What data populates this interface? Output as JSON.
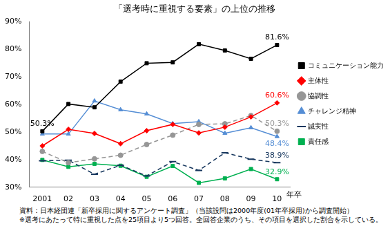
{
  "chart_data": {
    "type": "line",
    "title": "「選考時に重視する要素」の上位の推移",
    "x_label": "年卒",
    "categories": [
      "2001",
      "02",
      "03",
      "04",
      "05",
      "06",
      "07",
      "08",
      "09",
      "10"
    ],
    "ylim": [
      30,
      90
    ],
    "yticks": [
      {
        "value": 30,
        "label": "30%"
      },
      {
        "value": 40,
        "label": "40%"
      },
      {
        "value": 50,
        "label": "50%"
      },
      {
        "value": 60,
        "label": "60%"
      },
      {
        "value": 70,
        "label": "70%"
      },
      {
        "value": 80,
        "label": "80%"
      },
      {
        "value": 90,
        "label": "90%"
      }
    ],
    "grid": false,
    "legend": "right",
    "data_labels": true,
    "series": [
      {
        "name": "コミュニケーション能力",
        "color": "#000000",
        "marker": "square",
        "line_style": "solid",
        "values": [
          50.3,
          60.2,
          59.0,
          68.3,
          75.0,
          75.3,
          81.9,
          79.6,
          76.6,
          81.6
        ],
        "value_labels": [
          "50.3%",
          null,
          null,
          null,
          null,
          null,
          null,
          null,
          null,
          "81.6%"
        ]
      },
      {
        "name": "主体性",
        "color": "#ff0000",
        "marker": "diamond",
        "line_style": "solid",
        "values": [
          45.0,
          51.0,
          49.5,
          45.8,
          50.5,
          52.8,
          49.7,
          51.8,
          55.5,
          60.6
        ],
        "value_labels": [
          null,
          null,
          null,
          null,
          null,
          null,
          null,
          null,
          null,
          "60.6%"
        ]
      },
      {
        "name": "協調性",
        "color": "#969696",
        "marker": "circle",
        "line_style": "dashed",
        "values": [
          43.0,
          38.9,
          40.3,
          41.6,
          45.5,
          48.9,
          52.8,
          53.0,
          56.0,
          50.3
        ],
        "value_labels": [
          null,
          null,
          null,
          null,
          null,
          null,
          null,
          null,
          null,
          "50.3%"
        ]
      },
      {
        "name": "チャレンジ精神",
        "color": "#558ed5",
        "marker": "triangle",
        "line_style": "solid",
        "values": [
          49.3,
          49.3,
          61.3,
          58.1,
          56.6,
          53.1,
          53.8,
          49.6,
          51.6,
          48.4
        ],
        "value_labels": [
          null,
          null,
          null,
          null,
          null,
          null,
          null,
          null,
          null,
          "48.4%"
        ]
      },
      {
        "name": "誠実性",
        "color": "#17375e",
        "marker": "dash",
        "line_style": "dashed",
        "values": [
          39.6,
          39.8,
          34.7,
          38.0,
          34.1,
          39.3,
          36.1,
          42.5,
          40.2,
          38.9
        ],
        "value_labels": [
          null,
          null,
          null,
          null,
          null,
          null,
          null,
          null,
          null,
          "38.9%"
        ]
      },
      {
        "name": "責任感",
        "color": "#00b050",
        "marker": "square",
        "line_style": "solid",
        "values": [
          39.9,
          37.4,
          38.5,
          37.8,
          33.8,
          37.7,
          31.6,
          33.2,
          36.6,
          32.9
        ],
        "value_labels": [
          null,
          null,
          null,
          null,
          null,
          null,
          null,
          null,
          null,
          "32.9%"
        ]
      }
    ],
    "annotations": [
      "資料：日本経団連「新卒採用に関するアンケート調査」（当該設問は2000年度(01年卒採用)から調査開始）",
      "※選考にあたって特に重視した点を25項目より5つ回答。全回答企業のうち、その項目を選択した割合を示している。"
    ]
  }
}
